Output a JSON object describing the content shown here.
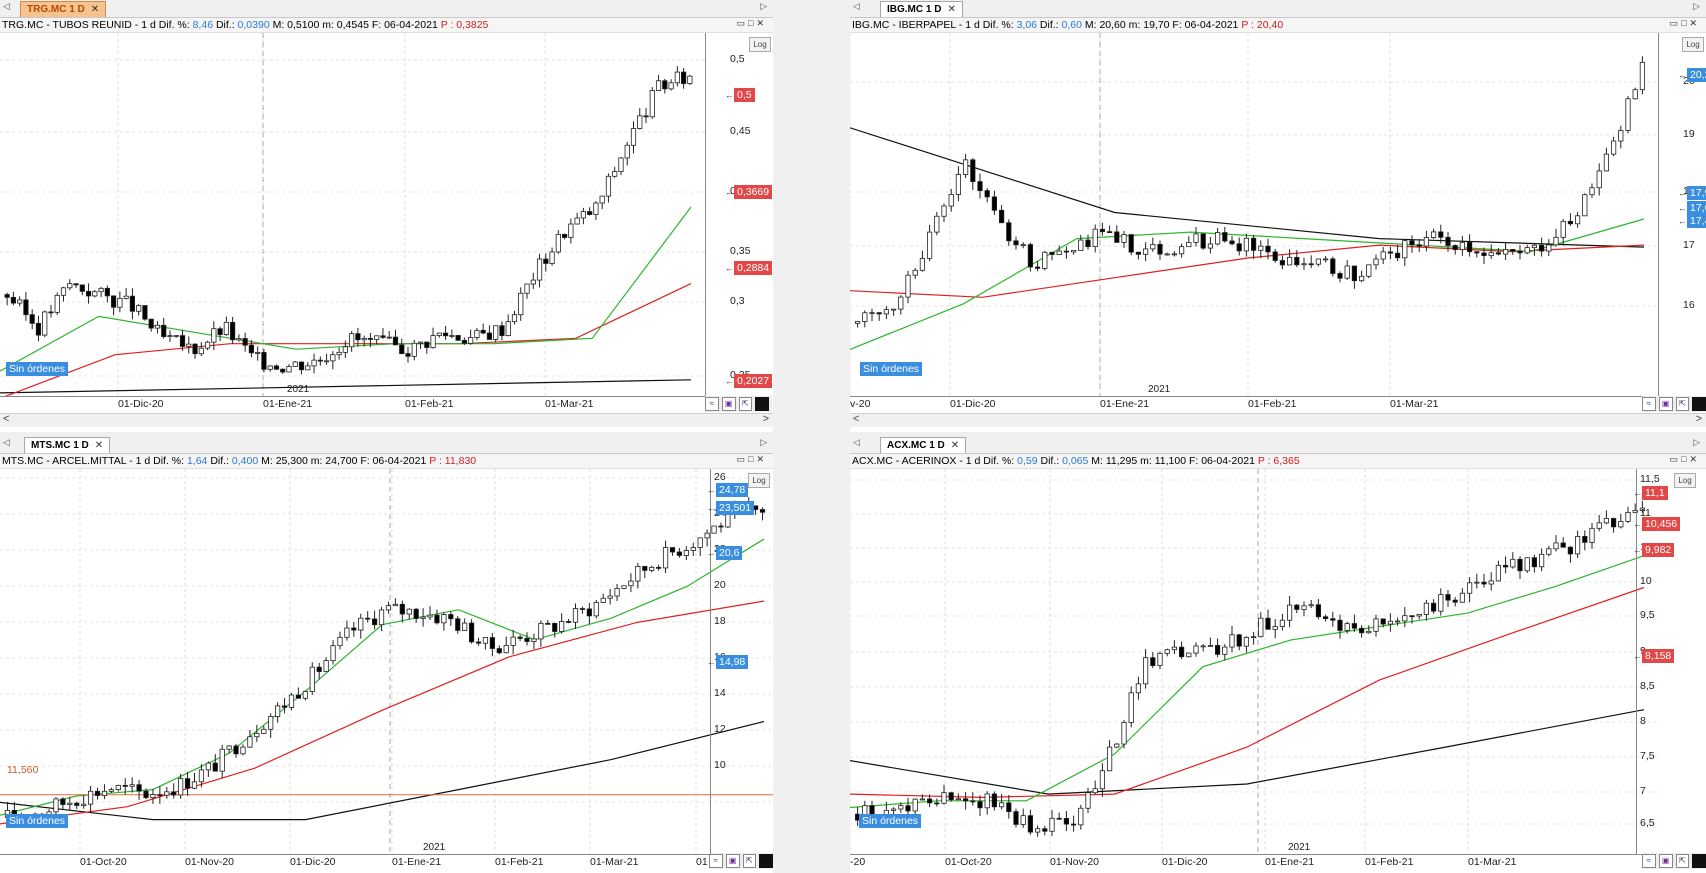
{
  "panels": [
    {
      "tab": "TRG.MC 1 D",
      "active": true,
      "info": {
        "name": "TRG.MC - TUBOS REUNID - 1 d",
        "difp_lbl": "Dif. %:",
        "difp": "8,46",
        "dif_lbl": "Dif.:",
        "dif": "0,0390",
        "mm": "M: 0,5100 m: 0,4545 F: 06-04-2021",
        "p": "P : 0,3825"
      },
      "log": "Log",
      "ticks": [
        "0,5",
        "0,45",
        "0,4",
        "0,35",
        "0,3",
        "0,25"
      ],
      "tags": [
        "0,5",
        "0,3669",
        "0,2884",
        "0,2027"
      ],
      "dates": [
        "01-Dic-20",
        "01-Ene-21",
        "01-Feb-21",
        "01-Mar-21"
      ],
      "year": "2021",
      "orders": "Sin órdenes"
    },
    {
      "tab": "IBG.MC 1 D",
      "active": false,
      "info": {
        "name": "IBG.MC - IBERPAPEL - 1 d",
        "difp_lbl": "Dif. %:",
        "difp": "3,06",
        "dif_lbl": "Dif.:",
        "dif": "0,60",
        "mm": "M: 20,60 m: 19,70 F: 06-04-2021",
        "p": "P : 20,40"
      },
      "log": "Log",
      "ticks": [
        "20",
        "19",
        "18",
        "17",
        "16"
      ],
      "tags": [
        "20,2",
        "17,94",
        "17,62",
        "17,47"
      ],
      "dates": [
        "v-20",
        "01-Dic-20",
        "01-Ene-21",
        "01-Feb-21",
        "01-Mar-21"
      ],
      "year": "2021",
      "orders": "Sin órdenes"
    },
    {
      "tab": "MTS.MC 1 D",
      "active": false,
      "info": {
        "name": "MTS.MC - ARCEL.MITTAL - 1 d",
        "difp_lbl": "Dif. %:",
        "difp": "1,64",
        "dif_lbl": "Dif.:",
        "dif": "0,400",
        "mm": "M: 25,300 m: 24,700 F: 06-04-2021",
        "p": "P : 11,830"
      },
      "log": "Log",
      "ticks": [
        "26",
        "24",
        "22",
        "20",
        "18",
        "16",
        "14",
        "12",
        "10"
      ],
      "tags": [
        "24,78",
        "23,501",
        "20,6",
        "14,98"
      ],
      "hline": "11,560",
      "dates": [
        "01-Oct-20",
        "01-Nov-20",
        "01-Dic-20",
        "01-Ene-21",
        "01-Feb-21",
        "01-Mar-21",
        "01"
      ],
      "year": "2021",
      "orders": "Sin órdenes"
    },
    {
      "tab": "ACX.MC 1 D",
      "active": false,
      "info": {
        "name": "ACX.MC - ACERINOX - 1 d",
        "difp_lbl": "Dif. %:",
        "difp": "0,59",
        "dif_lbl": "Dif.:",
        "dif": "0,065",
        "mm": "M: 11,295 m: 11,100 F: 06-04-2021",
        "p": "P : 6,365"
      },
      "log": "Log",
      "ticks": [
        "11,5",
        "11",
        "10,5",
        "10",
        "9,5",
        "9",
        "8,5",
        "8",
        "7,5",
        "7",
        "6,5"
      ],
      "tags": [
        "11,1",
        "10,456",
        "9,982",
        "8,158"
      ],
      "dates": [
        "-20",
        "01-Oct-20",
        "01-Nov-20",
        "01-Dic-20",
        "01-Ene-21",
        "01-Feb-21",
        "01-Mar-21"
      ],
      "year": "2021",
      "orders": "Sin órdenes"
    }
  ],
  "colors": {
    "up": "#ffffff",
    "down": "#000000",
    "ma_fast": "#2db52d",
    "ma_mid": "#e02020",
    "ma_slow": "#111111",
    "tag_red": "#e34848",
    "tag_blue": "#3a8ee0"
  }
}
